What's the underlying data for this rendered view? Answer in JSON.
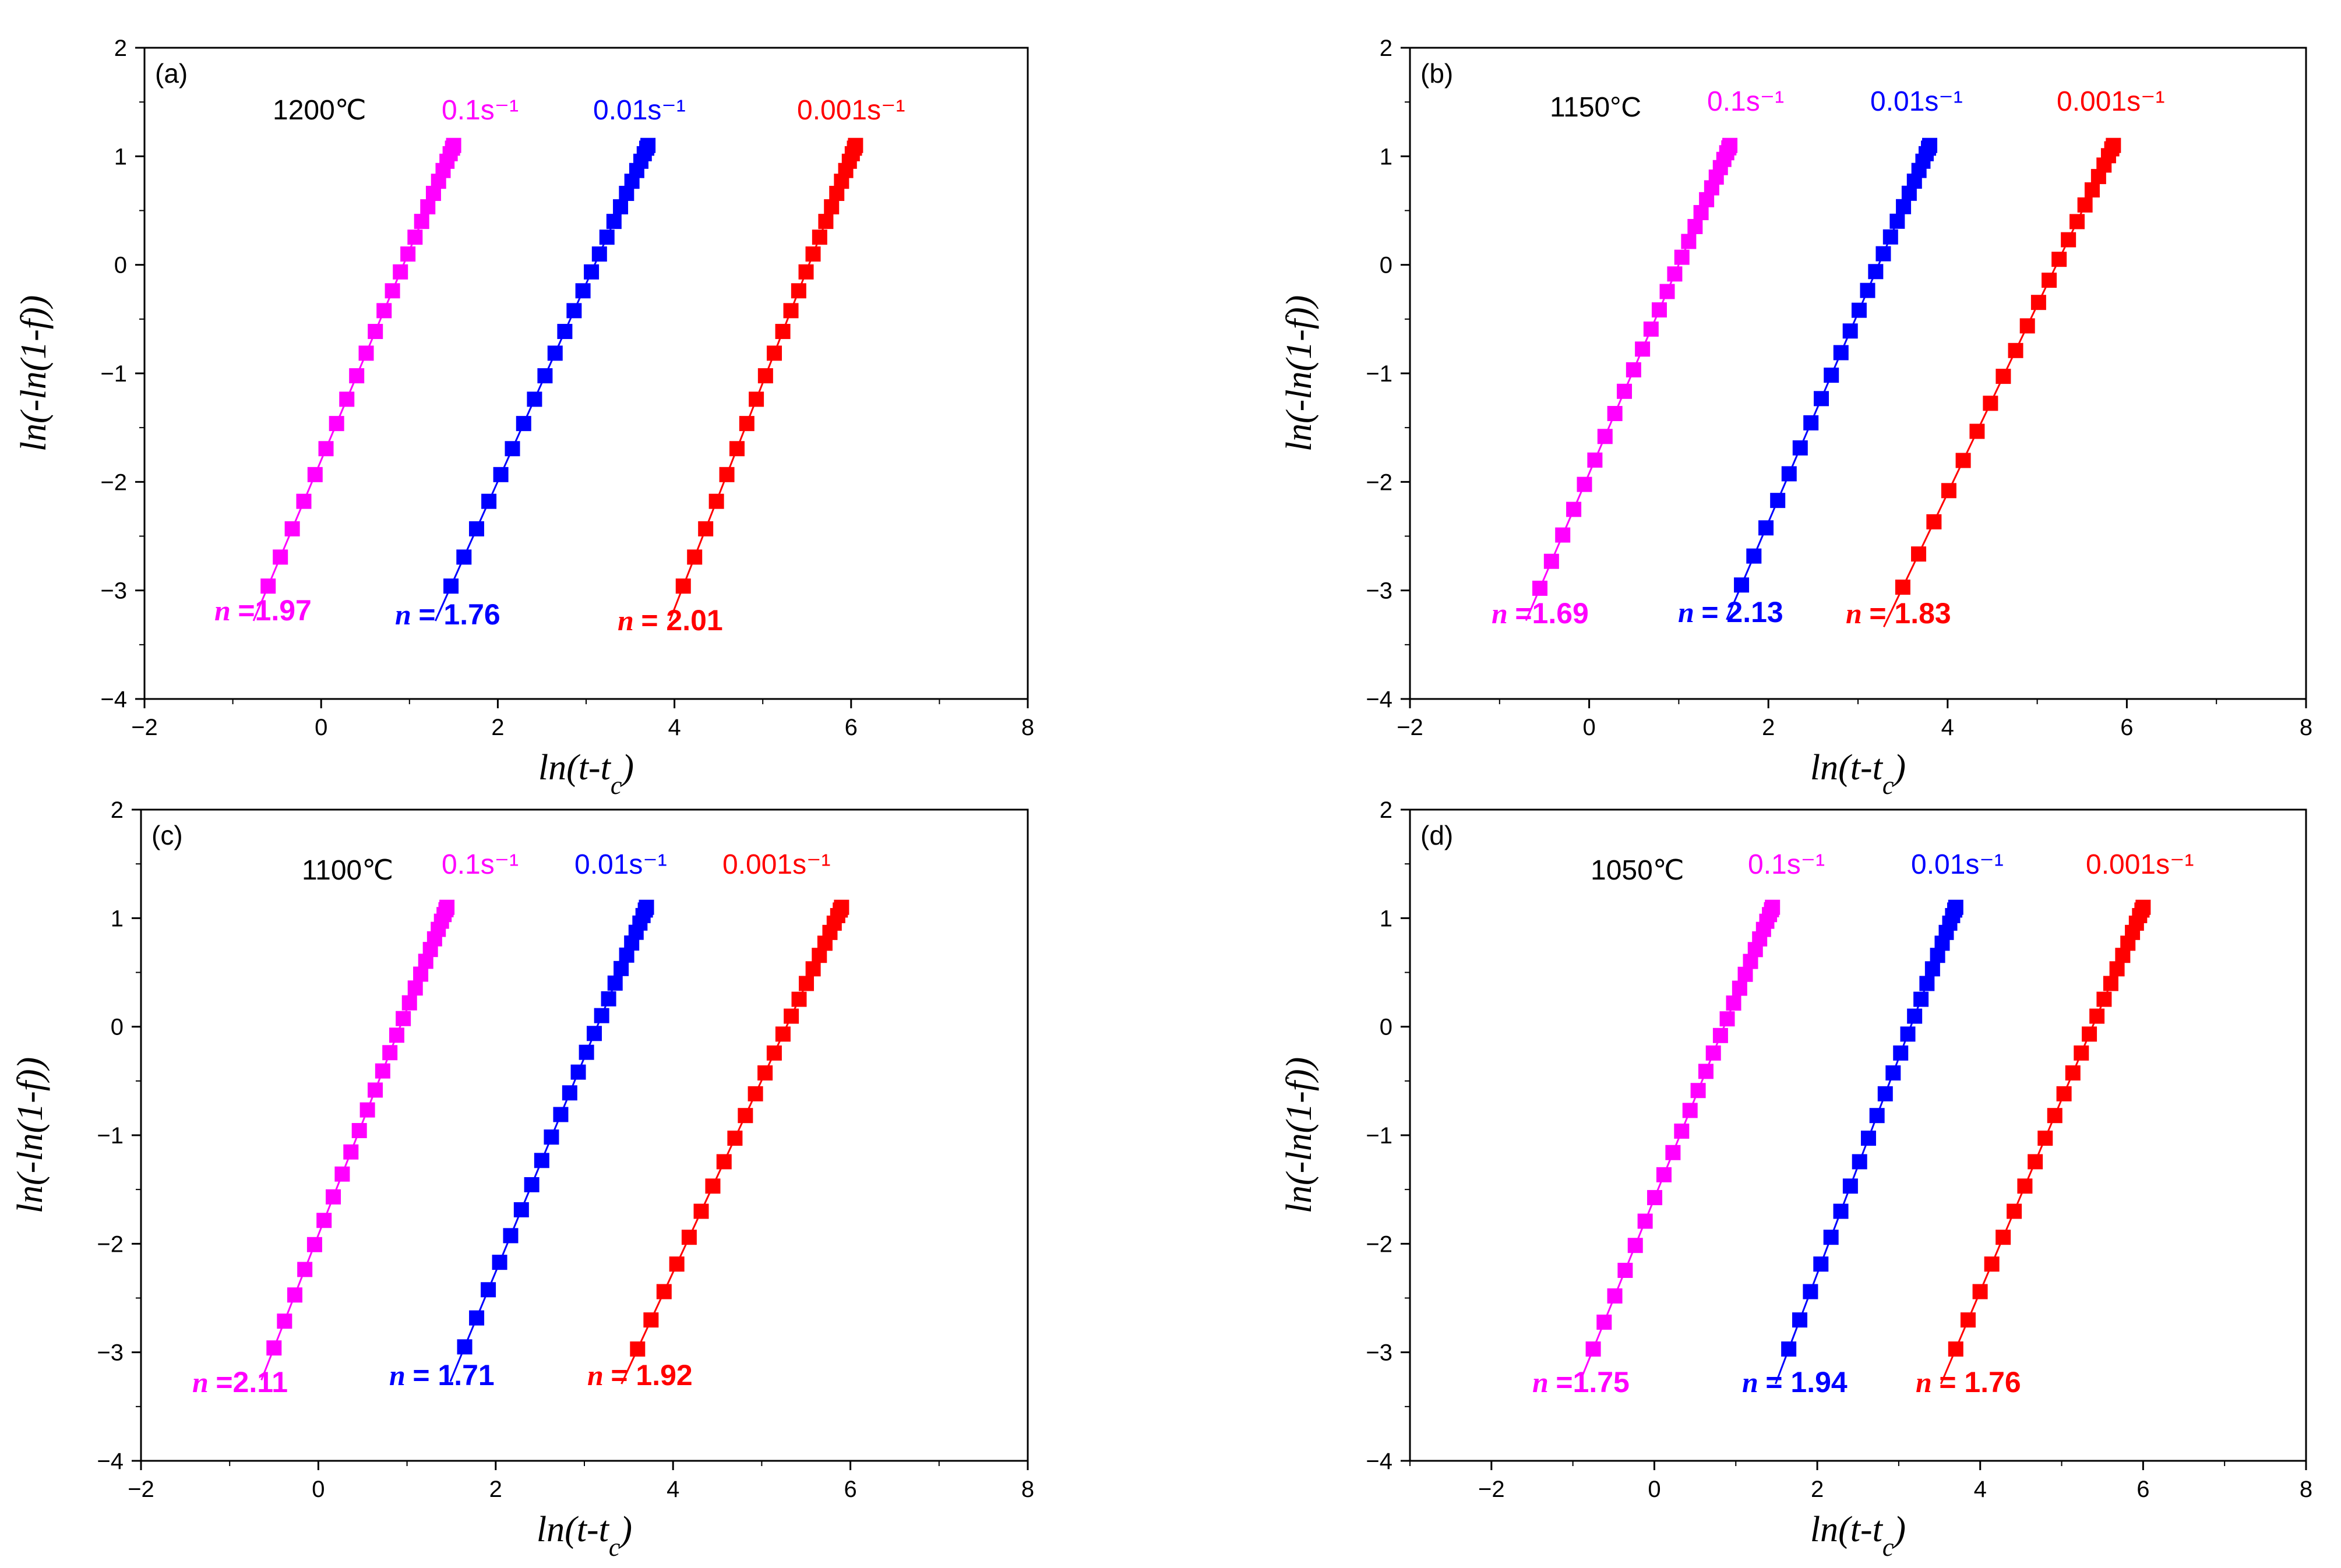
{
  "figure": {
    "series_colors": [
      "#ff00ff",
      "#0000ff",
      "#ff0000"
    ],
    "marker": "square"
  },
  "chart_data": [
    {
      "type": "scatter",
      "panel": "(a)",
      "temperature": "1200℃",
      "xlabel": "ln(t-tc)",
      "ylabel": "ln(-ln(1-f))",
      "xlim": [
        -2,
        8
      ],
      "ylim": [
        -4,
        2
      ],
      "xticks": [
        "−2",
        "0",
        "2",
        "4",
        "6",
        "8"
      ],
      "yticks": [
        "−4",
        "−3",
        "−2",
        "−1",
        "0",
        "1",
        "2"
      ],
      "series": [
        {
          "name": "0.1s⁻¹",
          "n_label": "=1.97",
          "x_range": [
            -0.6,
            1.5
          ],
          "y_range": [
            -2.96,
            1.1
          ],
          "points": 25
        },
        {
          "name": "0.01s⁻¹",
          "n_label": "= 1.76",
          "x_range": [
            1.47,
            3.7
          ],
          "y_range": [
            -2.96,
            1.1
          ],
          "points": 25
        },
        {
          "name": "0.001s⁻¹",
          "n_label": "= 2.01",
          "x_range": [
            4.1,
            6.05
          ],
          "y_range": [
            -2.96,
            1.1
          ],
          "points": 25
        }
      ]
    },
    {
      "type": "scatter",
      "panel": "(b)",
      "temperature": "1150°C",
      "xlabel": "ln(t-tc)",
      "ylabel": "ln(-ln(1-f))",
      "xlim": [
        -2,
        8
      ],
      "ylim": [
        -4,
        2
      ],
      "xticks": [
        "−2",
        "0",
        "2",
        "4",
        "6",
        "8"
      ],
      "yticks": [
        "−4",
        "−3",
        "−2",
        "−1",
        "0",
        "1",
        "2"
      ],
      "series": [
        {
          "name": "0.1s⁻¹",
          "n_label": "=1.69",
          "x_range": [
            -0.55,
            1.57
          ],
          "y_range": [
            -2.98,
            1.1
          ],
          "points": 27
        },
        {
          "name": "0.01s⁻¹",
          "n_label": "= 2.13",
          "x_range": [
            1.7,
            3.8
          ],
          "y_range": [
            -2.95,
            1.1
          ],
          "points": 25
        },
        {
          "name": "0.001s⁻¹",
          "n_label": "= 1.83",
          "x_range": [
            3.5,
            5.85
          ],
          "y_range": [
            -2.97,
            1.1
          ],
          "points": 22
        }
      ]
    },
    {
      "type": "scatter",
      "panel": "(c)",
      "temperature": "1100℃",
      "xlabel": "ln(t-tc)",
      "ylabel": "ln(-ln(1-f))",
      "xlim": [
        -2,
        8
      ],
      "ylim": [
        -4,
        2
      ],
      "xticks": [
        "−2",
        "0",
        "2",
        "4",
        "6",
        "8"
      ],
      "yticks": [
        "−4",
        "−3",
        "−2",
        "−1",
        "0",
        "1",
        "2"
      ],
      "series": [
        {
          "name": "0.1s⁻¹",
          "n_label": "=2.11",
          "x_range": [
            -0.5,
            1.45
          ],
          "y_range": [
            -2.96,
            1.1
          ],
          "points": 27
        },
        {
          "name": "0.01s⁻¹",
          "n_label": "= 1.71",
          "x_range": [
            1.65,
            3.7
          ],
          "y_range": [
            -2.95,
            1.1
          ],
          "points": 25
        },
        {
          "name": "0.001s⁻¹",
          "n_label": "= 1.92",
          "x_range": [
            3.6,
            5.9
          ],
          "y_range": [
            -2.97,
            1.1
          ],
          "points": 25
        }
      ]
    },
    {
      "type": "scatter",
      "panel": "(d)",
      "temperature": "1050℃",
      "xlabel": "ln(t-tc)",
      "ylabel": "ln(-ln(1-f))",
      "xlim": [
        -3,
        8
      ],
      "ylim": [
        -4,
        2
      ],
      "xticks": [
        "−2",
        "0",
        "2",
        "4",
        "6",
        "8"
      ],
      "yticks": [
        "−4",
        "−3",
        "−2",
        "−1",
        "0",
        "1",
        "2"
      ],
      "series": [
        {
          "name": "0.1s⁻¹",
          "n_label": "=1.75",
          "x_range": [
            -0.75,
            1.45
          ],
          "y_range": [
            -2.97,
            1.1
          ],
          "points": 27
        },
        {
          "name": "0.01s⁻¹",
          "n_label": "= 1.94",
          "x_range": [
            1.65,
            3.7
          ],
          "y_range": [
            -2.97,
            1.1
          ],
          "points": 25
        },
        {
          "name": "0.001s⁻¹",
          "n_label": "= 1.76",
          "x_range": [
            3.7,
            6.0
          ],
          "y_range": [
            -2.97,
            1.1
          ],
          "points": 25
        }
      ]
    }
  ]
}
